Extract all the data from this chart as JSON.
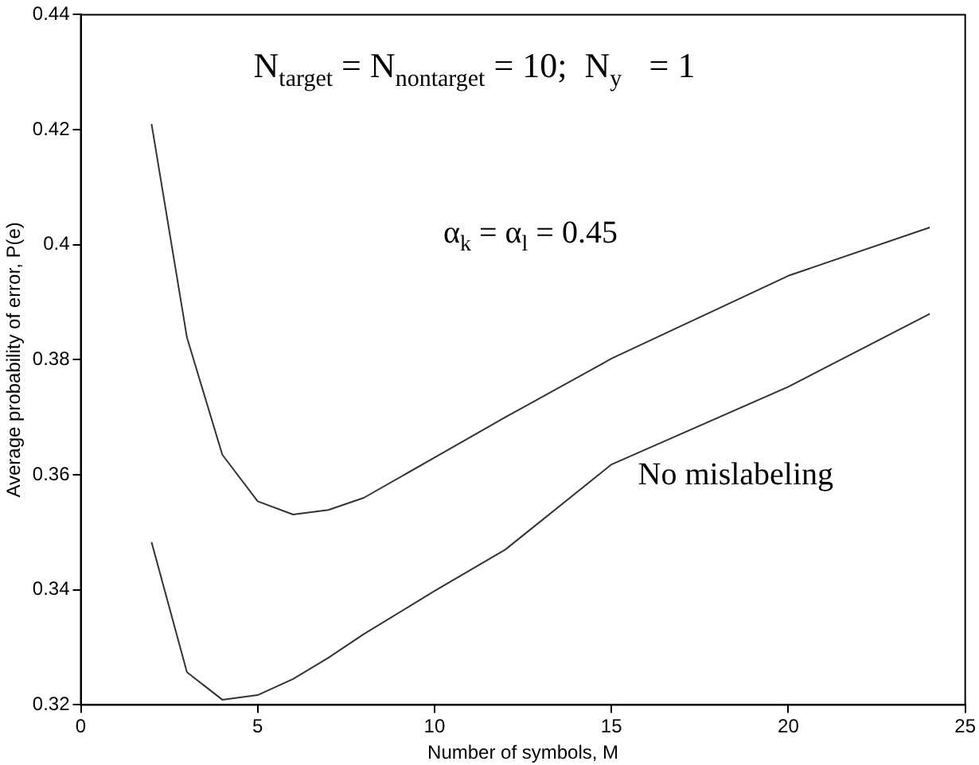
{
  "chart_data": {
    "type": "line",
    "xlabel": "Number of symbols, M",
    "ylabel": "Average probability of error, P(e)",
    "x": [
      2,
      3,
      4,
      5,
      6,
      7,
      8,
      10,
      12,
      15,
      20,
      24
    ],
    "series": [
      {
        "color": "#333333",
        "values": [
          0.421,
          0.3839,
          0.3635,
          0.3554,
          0.3531,
          0.3539,
          0.356,
          0.363,
          0.37,
          0.3802,
          0.3946,
          0.403
        ]
      },
      {
        "color": "#333333",
        "values": [
          0.3483,
          0.3257,
          0.3209,
          0.3217,
          0.3245,
          0.3282,
          0.3323,
          0.3398,
          0.347,
          0.3618,
          0.3753,
          0.388
        ]
      }
    ],
    "xlim": [
      0,
      25
    ],
    "xticks": [
      0,
      5,
      10,
      15,
      20,
      25
    ],
    "ylim": [
      0.32,
      0.44
    ],
    "yticks": [
      0.32,
      0.34,
      0.36,
      0.38,
      0.4,
      0.42,
      0.44
    ],
    "grid": false,
    "legend": false,
    "marker": "none",
    "line_style": "solid",
    "annotations": [
      "N$_{target}$ = N$_{nontarget}$ = 10;  N$_{y⃗}$ = 1",
      "α$_{k}$ = α$_{l}$ = 0.45",
      "No mislabeling"
    ]
  }
}
